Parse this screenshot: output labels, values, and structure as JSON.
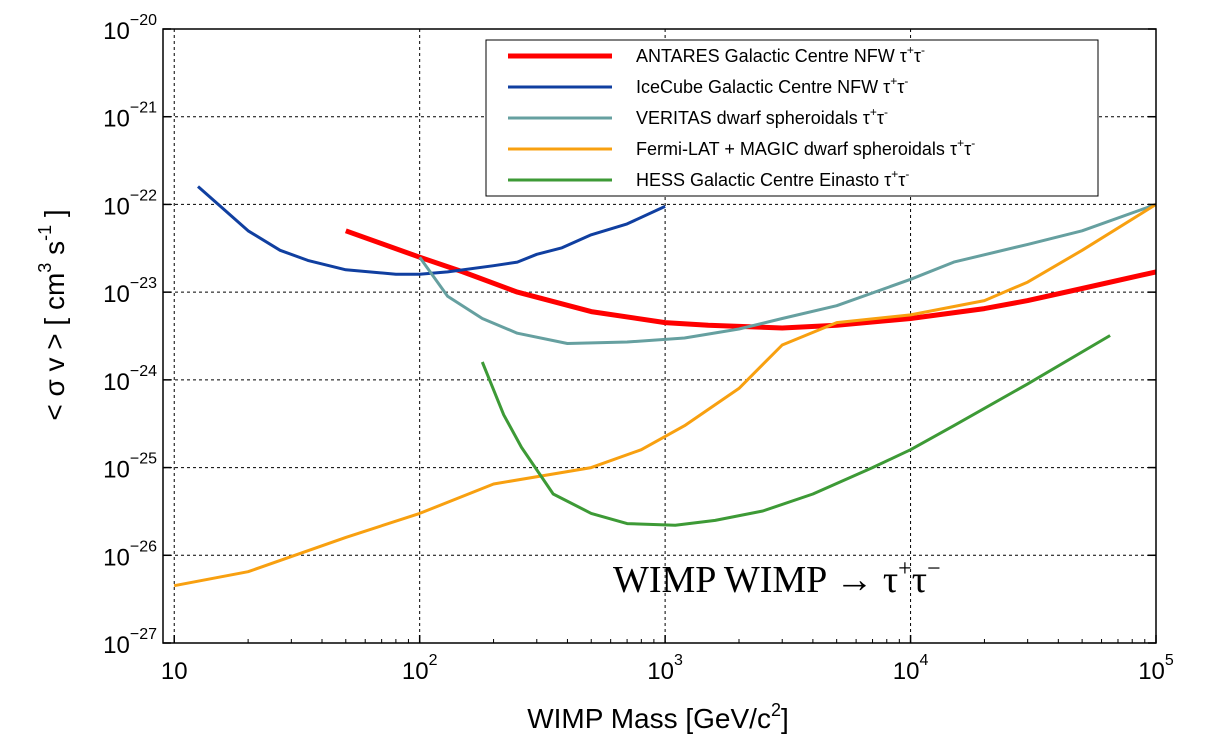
{
  "chart_data": {
    "type": "line",
    "title": "",
    "xlabel_main": "WIMP Mass [GeV/c",
    "xlabel_sup": "2",
    "xlabel_end": "]",
    "ylabel_parts": [
      "< σ v > [ cm",
      "3",
      " s",
      "-1",
      " ]"
    ],
    "xscale": "log",
    "yscale": "log",
    "xlim": [
      9,
      100000
    ],
    "ylim": [
      1e-27,
      1e-20
    ],
    "grid": true,
    "x_ticks": [
      {
        "value": 10,
        "base": "10",
        "exp": ""
      },
      {
        "value": 100,
        "base": "10",
        "exp": "2"
      },
      {
        "value": 1000,
        "base": "10",
        "exp": "3"
      },
      {
        "value": 10000,
        "base": "10",
        "exp": "4"
      },
      {
        "value": 100000,
        "base": "10",
        "exp": "5"
      }
    ],
    "y_ticks": [
      {
        "value": 1e-27,
        "base": "10",
        "exp": "−27"
      },
      {
        "value": 1e-26,
        "base": "10",
        "exp": "−26"
      },
      {
        "value": 1e-25,
        "base": "10",
        "exp": "−25"
      },
      {
        "value": 1e-24,
        "base": "10",
        "exp": "−24"
      },
      {
        "value": 1e-23,
        "base": "10",
        "exp": "−23"
      },
      {
        "value": 1e-22,
        "base": "10",
        "exp": "−22"
      },
      {
        "value": 1e-21,
        "base": "10",
        "exp": "−21"
      },
      {
        "value": 1e-20,
        "base": "10",
        "exp": "−20"
      }
    ],
    "legend_location": "upper-right",
    "annotation": {
      "text": "WIMP WIMP → τ",
      "sup1": "+",
      "mid": "τ",
      "sup2": "−"
    },
    "series": [
      {
        "name": "ANTARES Galactic Centre NFW",
        "label_base": "ANTARES Galactic Centre NFW ",
        "color": "#ff0000",
        "width": 5,
        "x": [
          50,
          100,
          150,
          250,
          500,
          1000,
          1500,
          3000,
          5000,
          10000,
          20000,
          30000,
          50000,
          100000
        ],
        "y": [
          5e-23,
          2.5e-23,
          1.7e-23,
          1e-23,
          6e-24,
          4.5e-24,
          4.2e-24,
          3.9e-24,
          4.2e-24,
          5e-24,
          6.5e-24,
          8e-24,
          1.1e-23,
          1.7e-23
        ]
      },
      {
        "name": "IceCube Galactic Centre NFW",
        "label_base": "IceCube Galactic Centre NFW ",
        "color": "#103fa0",
        "width": 3,
        "x": [
          12.5,
          20,
          27,
          35,
          50,
          80,
          100,
          130,
          200,
          250,
          300,
          380,
          500,
          700,
          1000
        ],
        "y": [
          1.6e-22,
          5e-23,
          3e-23,
          2.3e-23,
          1.8e-23,
          1.6e-23,
          1.6e-23,
          1.7e-23,
          2e-23,
          2.2e-23,
          2.7e-23,
          3.2e-23,
          4.5e-23,
          6e-23,
          9.5e-23
        ]
      },
      {
        "name": "VERITAS dwarf spheroidals",
        "label_base": "VERITAS dwarf spheroidals ",
        "color": "#66a0a0",
        "width": 3,
        "x": [
          100,
          130,
          180,
          250,
          400,
          700,
          1200,
          2000,
          3000,
          5000,
          10000,
          15000,
          30000,
          50000,
          100000
        ],
        "y": [
          2.5e-23,
          9e-24,
          5e-24,
          3.4e-24,
          2.6e-24,
          2.7e-24,
          3e-24,
          3.8e-24,
          5e-24,
          7e-24,
          1.4e-23,
          2.2e-23,
          3.5e-23,
          5e-23,
          1e-22
        ]
      },
      {
        "name": "Fermi-LAT + MAGIC dwarf spheroidals",
        "label_base": "Fermi-LAT + MAGIC dwarf spheroidals ",
        "color": "#f8a010",
        "width": 3,
        "x": [
          10,
          20,
          50,
          100,
          200,
          500,
          800,
          1200,
          2000,
          3000,
          5000,
          10000,
          20000,
          30000,
          50000,
          100000
        ],
        "y": [
          4.5e-27,
          6.5e-27,
          1.6e-26,
          3e-26,
          6.5e-26,
          1e-25,
          1.6e-25,
          3e-25,
          8e-25,
          2.5e-24,
          4.5e-24,
          5.5e-24,
          8e-24,
          1.3e-23,
          3e-23,
          1e-22
        ]
      },
      {
        "name": "HESS Galactic Centre Einasto",
        "label_base": "HESS Galactic Centre Einasto ",
        "color": "#3d9a36",
        "width": 3,
        "x": [
          180,
          220,
          260,
          350,
          500,
          700,
          1100,
          1600,
          2500,
          4000,
          7000,
          10000,
          15000,
          30000,
          65000
        ],
        "y": [
          1.6e-24,
          4e-25,
          1.7e-25,
          5e-26,
          3e-26,
          2.3e-26,
          2.2e-26,
          2.5e-26,
          3.2e-26,
          5e-26,
          1e-25,
          1.6e-25,
          3e-25,
          9e-25,
          3.2e-24
        ]
      }
    ],
    "legend_suffix": {
      "t1": "τ",
      "s1": "+",
      "t2": "τ",
      "s2": "-"
    }
  }
}
